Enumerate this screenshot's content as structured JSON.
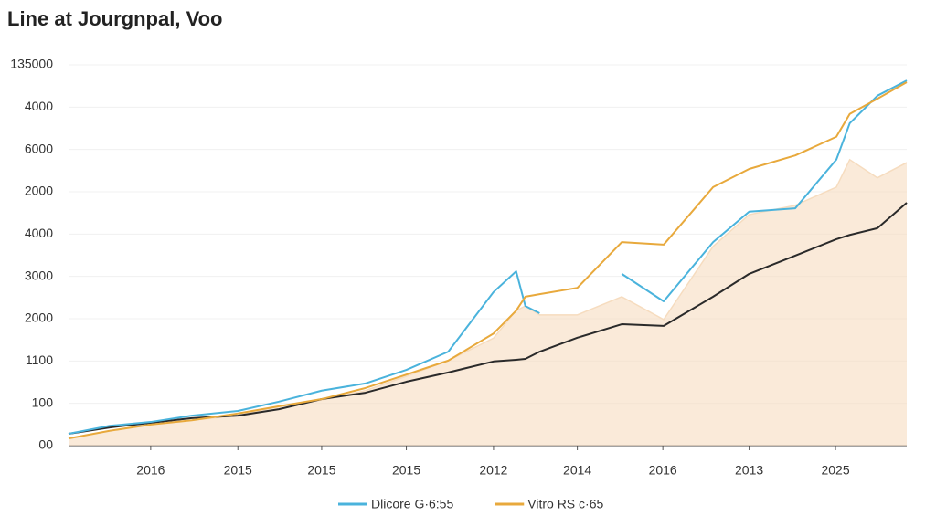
{
  "chart_data": {
    "type": "line",
    "title": "Line at Jourgnpal, Voo",
    "x": [
      0,
      4.9,
      9.8,
      14.7,
      20.2,
      25.1,
      30.2,
      35.4,
      40.3,
      45.3,
      50.7,
      53.4,
      54.5,
      56.2,
      60.7,
      66.0,
      71.0,
      76.9,
      81.2,
      86.7,
      91.6,
      93.2,
      96.5,
      100
    ],
    "series": [
      {
        "color": "#f6dcbf",
        "fill": true,
        "values": [
          0.17,
          0.35,
          0.5,
          0.6,
          0.71,
          0.93,
          1.08,
          1.3,
          1.64,
          2.01,
          2.54,
          3.19,
          3.3,
          3.09,
          3.09,
          3.52,
          2.98,
          4.71,
          5.46,
          5.68,
          6.11,
          6.76,
          6.33,
          6.69
        ]
      },
      {
        "color": "#2a2a2a",
        "values": [
          0.28,
          0.43,
          0.54,
          0.65,
          0.71,
          0.86,
          1.1,
          1.25,
          1.51,
          1.73,
          1.99,
          2.03,
          2.05,
          2.22,
          2.55,
          2.87,
          2.83,
          3.52,
          4.06,
          4.49,
          4.88,
          4.98,
          5.14,
          5.74
        ]
      },
      {
        "name": "Dlicore G·6:55",
        "color": "#4ab3dc",
        "values": [
          0.28,
          0.47,
          0.56,
          0.71,
          0.82,
          1.04,
          1.3,
          1.47,
          1.79,
          2.22,
          3.63,
          4.12,
          3.3,
          3.13,
          null,
          4.06,
          3.41,
          4.81,
          5.53,
          5.61,
          6.76,
          7.62,
          8.27,
          8.63
        ]
      },
      {
        "name": "Vitro RS c·65",
        "color": "#e8a93c",
        "values": [
          0.17,
          0.35,
          0.5,
          0.6,
          0.76,
          0.93,
          1.1,
          1.36,
          1.68,
          2.01,
          2.65,
          3.19,
          3.52,
          3.58,
          3.73,
          4.81,
          4.75,
          6.11,
          6.54,
          6.86,
          7.3,
          7.84,
          8.2,
          8.59
        ]
      }
    ],
    "xlim": [
      0,
      100
    ],
    "xticks": [
      {
        "value": 9.8,
        "label": "2016"
      },
      {
        "value": 20.2,
        "label": "2015"
      },
      {
        "value": 30.2,
        "label": "2015"
      },
      {
        "value": 40.3,
        "label": "2015"
      },
      {
        "value": 50.7,
        "label": "2012"
      },
      {
        "value": 60.7,
        "label": "2014"
      },
      {
        "value": 70.9,
        "label": "2016"
      },
      {
        "value": 81.2,
        "label": "2013"
      },
      {
        "value": 91.5,
        "label": "2025"
      }
    ],
    "ylim": [
      0,
      9
    ],
    "yticks": [
      {
        "value": 0,
        "label": "00"
      },
      {
        "value": 1,
        "label": "100"
      },
      {
        "value": 2,
        "label": "1100"
      },
      {
        "value": 3,
        "label": "2000"
      },
      {
        "value": 4,
        "label": "3000"
      },
      {
        "value": 5,
        "label": "4000"
      },
      {
        "value": 6,
        "label": "2000"
      },
      {
        "value": 7,
        "label": "6000"
      },
      {
        "value": 8,
        "label": "4000"
      },
      {
        "value": 9,
        "label": "135000"
      }
    ],
    "grid": true
  }
}
